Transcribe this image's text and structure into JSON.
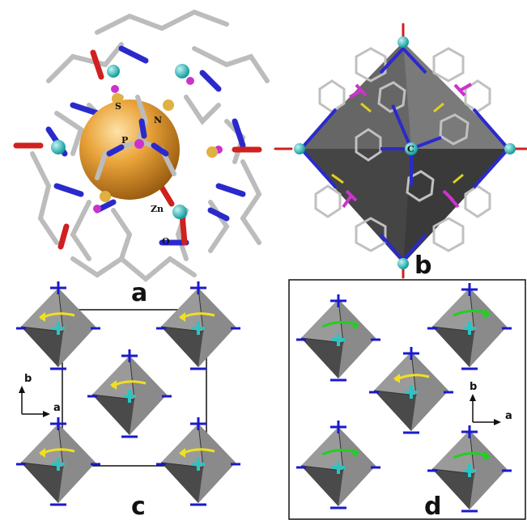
{
  "panels": {
    "a": {
      "letter": "a"
    },
    "b": {
      "letter": "b",
      "center_label": "C"
    },
    "c": {
      "letter": "c"
    },
    "d": {
      "letter": "d"
    }
  },
  "atom_labels": {
    "s": "S",
    "n": "N",
    "p": "P",
    "zn": "Zn",
    "o": "O"
  },
  "axes": {
    "a": "a",
    "b": "b"
  },
  "colors": {
    "zinc": "#2bc4c4",
    "nitrogen": "#2a2acc",
    "carbon": "#c8c8c8",
    "oxygen": "#d02020",
    "phosphorus": "#cc33cc",
    "sulfur": "#e0b040",
    "cavity_sphere": "#e09a2a",
    "octahedron": "#6a6a6a",
    "arrow_yellow": "#f0e020",
    "arrow_green": "#20d020"
  }
}
